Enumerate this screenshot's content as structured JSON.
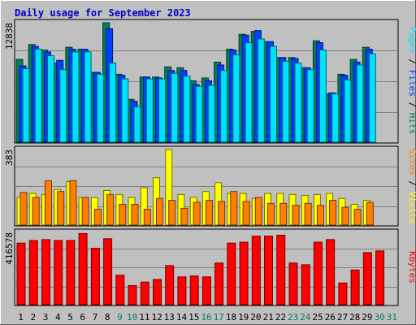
{
  "title": "Daily usage for September 2023",
  "colors": {
    "background": "#c0c0c0",
    "title": "#0000cc",
    "grid": "#808080",
    "hits": "#00805c",
    "files": "#0040ff",
    "pages": "#00e0ff",
    "visits": "#ffff00",
    "sites": "#ff8000",
    "kbytes": "#ff0000",
    "weekday_label": "#000000",
    "weekend_label": "#00805c"
  },
  "chart_data": [
    {
      "type": "bar",
      "panel": "hits-files-pages",
      "ymax_label": "12838",
      "ylim": [
        0,
        12838
      ],
      "categories": [
        "1",
        "2",
        "3",
        "4",
        "5",
        "6",
        "7",
        "8",
        "9",
        "10",
        "11",
        "12",
        "13",
        "14",
        "15",
        "16",
        "17",
        "18",
        "19",
        "20",
        "21",
        "22",
        "23",
        "24",
        "25",
        "26",
        "27",
        "28",
        "29",
        "30",
        "31"
      ],
      "weekend_days": [
        "9",
        "10",
        "16",
        "17",
        "23",
        "24",
        "30",
        "31"
      ],
      "series": [
        {
          "name": "Hits",
          "values": [
            8900,
            10500,
            9900,
            8500,
            10200,
            10000,
            7500,
            12838,
            7300,
            4600,
            7000,
            7000,
            8100,
            8000,
            6600,
            6900,
            8600,
            10000,
            11600,
            11900,
            10800,
            9100,
            9100,
            8000,
            10900,
            5200,
            7300,
            8900,
            10200,
            0,
            0
          ]
        },
        {
          "name": "Files",
          "values": [
            8200,
            10300,
            9700,
            8800,
            10000,
            10000,
            7500,
            12200,
            7200,
            4400,
            7000,
            6900,
            7700,
            7700,
            6200,
            6600,
            8300,
            9900,
            11500,
            12000,
            10800,
            9100,
            9000,
            8000,
            10700,
            5300,
            7200,
            8600,
            10000,
            0,
            0
          ]
        },
        {
          "name": "Pages",
          "values": [
            7900,
            10000,
            9300,
            7800,
            9700,
            9700,
            7300,
            8500,
            6800,
            3800,
            6800,
            6800,
            7400,
            7100,
            6000,
            6100,
            7700,
            9400,
            10700,
            11100,
            10300,
            8700,
            8500,
            7800,
            9900,
            5200,
            6700,
            8300,
            9500,
            0,
            0
          ]
        }
      ]
    },
    {
      "type": "bar",
      "panel": "visits-sites",
      "ymax_label": "383",
      "ylim": [
        0,
        383
      ],
      "categories": [
        "1",
        "2",
        "3",
        "4",
        "5",
        "6",
        "7",
        "8",
        "9",
        "10",
        "11",
        "12",
        "13",
        "14",
        "15",
        "16",
        "17",
        "18",
        "19",
        "20",
        "21",
        "22",
        "23",
        "24",
        "25",
        "26",
        "27",
        "28",
        "29",
        "30",
        "31"
      ],
      "series": [
        {
          "name": "Visits",
          "values": [
            140,
            160,
            155,
            180,
            220,
            140,
            140,
            175,
            155,
            140,
            190,
            240,
            383,
            155,
            140,
            170,
            215,
            160,
            160,
            135,
            160,
            160,
            155,
            150,
            155,
            160,
            135,
            105,
            125,
            0,
            0
          ]
        },
        {
          "name": "Sites",
          "values": [
            165,
            140,
            225,
            170,
            225,
            140,
            80,
            155,
            105,
            105,
            80,
            135,
            125,
            85,
            115,
            125,
            120,
            170,
            120,
            140,
            110,
            110,
            100,
            110,
            100,
            125,
            90,
            80,
            115,
            0,
            0
          ]
        }
      ]
    },
    {
      "type": "bar",
      "panel": "kbytes",
      "ymax_label": "416578",
      "ylim": [
        0,
        416578
      ],
      "categories": [
        "1",
        "2",
        "3",
        "4",
        "5",
        "6",
        "7",
        "8",
        "9",
        "10",
        "11",
        "12",
        "13",
        "14",
        "15",
        "16",
        "17",
        "18",
        "19",
        "20",
        "21",
        "22",
        "23",
        "24",
        "25",
        "26",
        "27",
        "28",
        "29",
        "30",
        "31"
      ],
      "series": [
        {
          "name": "KBytes",
          "values": [
            355000,
            370000,
            375000,
            370000,
            370000,
            410000,
            325000,
            380000,
            170000,
            110000,
            130000,
            145000,
            225000,
            160000,
            165000,
            160000,
            240000,
            355000,
            360000,
            395000,
            395000,
            400000,
            240000,
            230000,
            360000,
            375000,
            125000,
            200000,
            300000,
            310000,
            0
          ]
        }
      ]
    }
  ],
  "legend": {
    "top": {
      "pages": "Pages",
      "sep1": " / ",
      "files": "Files",
      "sep2": " / ",
      "hits": "Hits"
    },
    "middle": {
      "sites": "Sites",
      "sep1": " / ",
      "visits": "Visits"
    },
    "bottom": {
      "kbytes": "KBytes"
    }
  }
}
